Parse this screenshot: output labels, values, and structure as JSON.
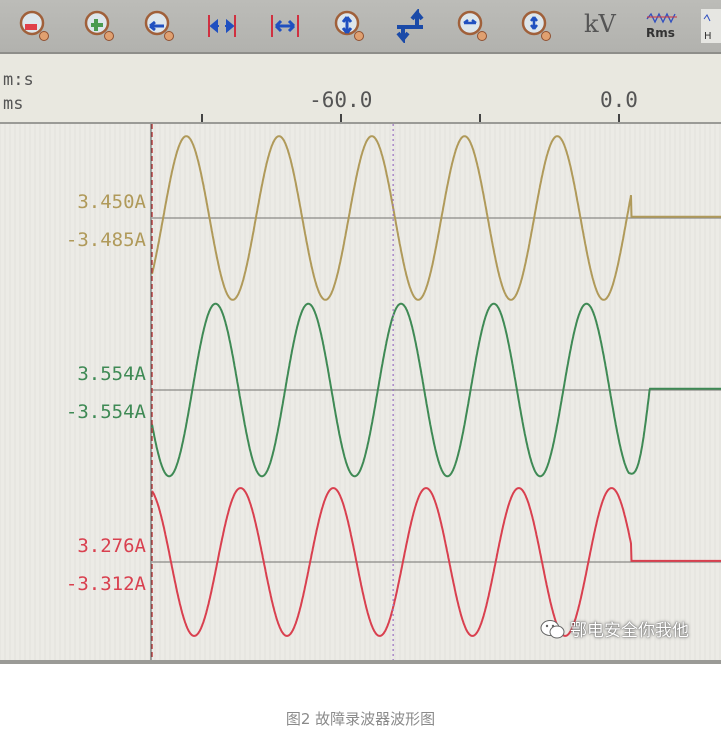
{
  "toolbar": {
    "icons": [
      "zoom-out-red-icon",
      "zoom-in-green-icon",
      "zoom-left-icon",
      "compress-horizontal-icon",
      "expand-horizontal-icon",
      "zoom-vertical-icon",
      "vertical-shift-icon",
      "zoom-horizontal-fit-icon",
      "zoom-vertical-fit-icon",
      "kv-unit-icon",
      "rms-icon",
      "harmonic-icon"
    ],
    "kv_label": "kV",
    "rms_label": "Rms"
  },
  "time_header": {
    "unit_top": "m:s",
    "unit_bottom": "ms"
  },
  "chart_data": {
    "type": "line",
    "title": "",
    "xlabel": "ms",
    "xlim": [
      -100.7,
      22
    ],
    "x_ticks": [
      -90,
      -60,
      -30,
      0
    ],
    "x_tick_labels": [
      "",
      "-60.0",
      "",
      "0.0"
    ],
    "frequency_hz": 50,
    "cursors": [
      {
        "type": "red-dashed",
        "x": -100.7
      },
      {
        "type": "purple-dotted",
        "x": -48.7
      }
    ],
    "grid": false,
    "series": [
      {
        "max_label": "3.450A",
        "min_label": "-3.485A",
        "max": 3.45,
        "min": -3.485,
        "first_peak_ms": -93.3,
        "stops_at_ms": 2.6,
        "color": "#b09a5a"
      },
      {
        "max_label": "3.554A",
        "min_label": "-3.554A",
        "max": 3.554,
        "min": -3.554,
        "first_peak_ms": -87.0,
        "stops_at_ms": 6.6,
        "color": "#3f8a55"
      },
      {
        "max_label": "3.276A",
        "min_label": "-3.312A",
        "max": 3.276,
        "min": -3.312,
        "first_peak_ms": -81.6,
        "stops_at_ms": 2.6,
        "color": "#d9404f"
      }
    ]
  },
  "watermark": "鄂电安全你我他",
  "caption": "图2  故障录波器波形图"
}
